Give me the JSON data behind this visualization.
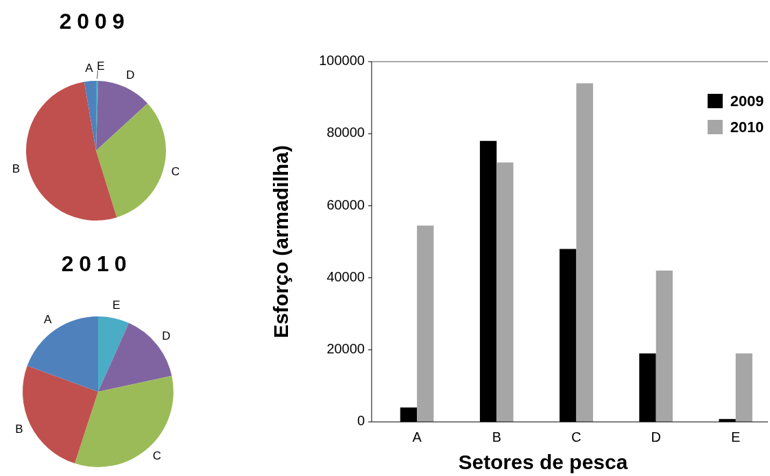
{
  "chart_data": [
    {
      "type": "pie",
      "title": "2009",
      "categories": [
        "E",
        "D",
        "C",
        "B",
        "A"
      ],
      "values": [
        0.5,
        12.7,
        32.0,
        52.1,
        2.7
      ],
      "colors": [
        "#4bacc6",
        "#8064a2",
        "#9bbb59",
        "#c0504d",
        "#4f81bd"
      ]
    },
    {
      "type": "pie",
      "title": "2010",
      "categories": [
        "E",
        "D",
        "C",
        "B",
        "A"
      ],
      "values": [
        6.7,
        14.9,
        33.4,
        25.6,
        19.4
      ],
      "colors": [
        "#4bacc6",
        "#8064a2",
        "#9bbb59",
        "#c0504d",
        "#4f81bd"
      ]
    },
    {
      "type": "bar",
      "xlabel": "Setores de pesca",
      "ylabel": "Esforço (armadilha)",
      "categories": [
        "A",
        "B",
        "C",
        "D",
        "E"
      ],
      "series": [
        {
          "name": "2009",
          "color": "#000000",
          "values": [
            4000,
            78000,
            48000,
            19000,
            800
          ]
        },
        {
          "name": "2010",
          "color": "#a6a6a6",
          "values": [
            54500,
            72000,
            94000,
            42000,
            19000
          ]
        }
      ],
      "ylim": [
        0,
        100000
      ],
      "yticks": [
        0,
        20000,
        40000,
        60000,
        80000,
        100000
      ],
      "legend": "top right"
    }
  ]
}
